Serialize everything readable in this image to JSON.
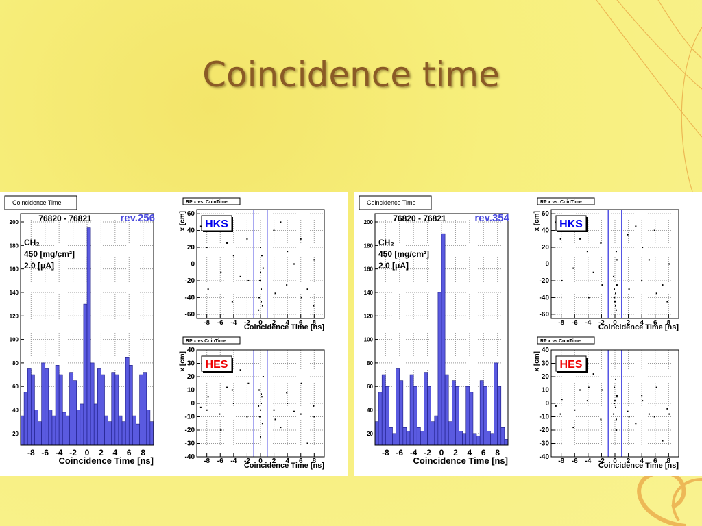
{
  "slide": {
    "title": "Coincidence time"
  },
  "chart_data": [
    {
      "type": "histogram",
      "title": "Coincidence Time",
      "run": "76820 - 76821",
      "revision": "rev.256",
      "annotations": [
        "CH₂",
        "450 [mg/cm²]",
        "2.0 [μA]"
      ],
      "xlabel": "Coincidence Time [ns]",
      "color": "#5a5ae0",
      "bins": [
        -9.5,
        -9,
        -8.5,
        -8,
        -7.5,
        -7,
        -6.5,
        -6,
        -5.5,
        -5,
        -4.5,
        -4,
        -3.5,
        -3,
        -2.5,
        -2,
        -1.5,
        -1,
        -0.5,
        0,
        0.5,
        1,
        1.5,
        2,
        2.5,
        3,
        3.5,
        4,
        4.5,
        5,
        5.5,
        6,
        6.5,
        7,
        7.5,
        8,
        8.5,
        9,
        9.5
      ],
      "counts": [
        35,
        55,
        75,
        70,
        40,
        30,
        80,
        75,
        40,
        35,
        78,
        70,
        38,
        35,
        72,
        65,
        40,
        45,
        130,
        195,
        80,
        45,
        75,
        70,
        35,
        30,
        72,
        70,
        35,
        30,
        85,
        78,
        35,
        28,
        70,
        72,
        40,
        30
      ],
      "xlim": [
        -9.5,
        9.5
      ],
      "ylim": [
        10,
        207
      ],
      "xticks": [
        -8,
        -6,
        -4,
        -2,
        0,
        2,
        4,
        6,
        8
      ],
      "yticks": [
        20,
        40,
        60,
        80,
        100,
        120,
        140,
        160,
        180,
        200
      ],
      "grid": true
    },
    {
      "type": "scatter",
      "title": "RP x vs. CoinTime",
      "label": "HKS",
      "label_color": "#0000ee",
      "xlabel": "Coincidence Time [ns]",
      "ylabel": "x [cm]",
      "color": "#000000",
      "x": [
        -8,
        -7.8,
        -6.1,
        -5.9,
        -4,
        -4.2,
        -2,
        -1.8,
        0,
        0.1,
        -0.2,
        0.3,
        0.2,
        -0.1,
        0.4,
        0,
        2,
        2.2,
        4,
        3.9,
        6,
        6.1,
        8,
        7.9,
        -8.9,
        -3,
        3,
        5,
        -5,
        7,
        -0.3,
        0.1
      ],
      "y": [
        20,
        -30,
        40,
        -10,
        10,
        -45,
        30,
        -20,
        -10,
        -30,
        -40,
        -50,
        10,
        -20,
        -5,
        20,
        40,
        -35,
        15,
        -25,
        30,
        -40,
        5,
        -50,
        45,
        -15,
        50,
        0,
        25,
        -30,
        -55,
        -45
      ],
      "cut_lines": [
        -1,
        1
      ],
      "xlim": [
        -9.5,
        9.5
      ],
      "ylim": [
        -65,
        65
      ],
      "xticks": [
        -8,
        -6,
        -4,
        -2,
        0,
        2,
        4,
        6,
        8
      ],
      "yticks": [
        -60,
        -40,
        -20,
        0,
        20,
        40,
        60
      ],
      "grid": true
    },
    {
      "type": "scatter",
      "title": "RP x vs.CoinTime",
      "label": "HES",
      "label_color": "#ee0000",
      "xlabel": "Coincidence Time [ns]",
      "ylabel": "x [cm]",
      "color": "#000000",
      "x": [
        -8,
        -7.8,
        -6.1,
        -5.9,
        -4,
        -4.2,
        -2,
        -1.8,
        0,
        0.1,
        -0.2,
        0.3,
        0.2,
        -0.1,
        0.4,
        0,
        2,
        2.2,
        4,
        3.9,
        6,
        6.1,
        8,
        7.9,
        -8.9,
        -3,
        3,
        5,
        -5,
        7,
        -0.3,
        0.1
      ],
      "y": [
        -5,
        5,
        -8,
        -20,
        0,
        10,
        -10,
        15,
        -5,
        0,
        10,
        -15,
        5,
        -10,
        20,
        -25,
        -5,
        -12,
        0,
        8,
        -8,
        15,
        -10,
        -2,
        -3,
        25,
        -18,
        -6,
        12,
        -30,
        -2,
        7
      ],
      "cut_lines": [
        -1,
        1
      ],
      "xlim": [
        -9.5,
        9.5
      ],
      "ylim": [
        -40,
        40
      ],
      "xticks": [
        -8,
        -6,
        -4,
        -2,
        0,
        2,
        4,
        6,
        8
      ],
      "yticks": [
        -40,
        -30,
        -20,
        -10,
        0,
        10,
        20,
        30,
        40
      ],
      "grid": true
    },
    {
      "type": "histogram",
      "title": "Coincidence Time",
      "run": "76820 - 76821",
      "revision": "rev.354",
      "annotations": [
        "CH₂",
        "450 [mg/cm²]",
        "2.0 [μA]"
      ],
      "xlabel": "Coincidence Time [ns]",
      "color": "#5a5ae0",
      "bins": [
        -9.5,
        -9,
        -8.5,
        -8,
        -7.5,
        -7,
        -6.5,
        -6,
        -5.5,
        -5,
        -4.5,
        -4,
        -3.5,
        -3,
        -2.5,
        -2,
        -1.5,
        -1,
        -0.5,
        0,
        0.5,
        1,
        1.5,
        2,
        2.5,
        3,
        3.5,
        4,
        4.5,
        5,
        5.5,
        6,
        6.5,
        7,
        7.5,
        8,
        8.5,
        9,
        9.5
      ],
      "counts": [
        30,
        55,
        70,
        60,
        25,
        20,
        75,
        65,
        25,
        22,
        70,
        60,
        25,
        22,
        72,
        60,
        30,
        35,
        140,
        190,
        70,
        30,
        65,
        60,
        22,
        20,
        60,
        55,
        20,
        18,
        65,
        60,
        22,
        20,
        80,
        60,
        25,
        15
      ],
      "xlim": [
        -9.5,
        9.5
      ],
      "ylim": [
        10,
        207
      ],
      "xticks": [
        -8,
        -6,
        -4,
        -2,
        0,
        2,
        4,
        6,
        8
      ],
      "yticks": [
        20,
        40,
        60,
        80,
        100,
        120,
        140,
        160,
        180,
        200
      ],
      "grid": true
    },
    {
      "type": "scatter",
      "title": "RP x vs. CoinTime",
      "label": "HKS",
      "label_color": "#0000ee",
      "xlabel": "Coincidence Time [ns]",
      "ylabel": "x [cm]",
      "color": "#000000",
      "x": [
        -8.1,
        -7.9,
        -6,
        -6.2,
        -4.1,
        -3.9,
        -2.1,
        -1.9,
        0.1,
        0,
        -0.1,
        0.2,
        0.3,
        -0.2,
        0.1,
        0.2,
        1.9,
        2.1,
        4.1,
        4,
        5.9,
        6.2,
        8.1,
        7.8,
        -8.8,
        -3.2,
        3.1,
        5.1,
        -5.2,
        7.1,
        -0.1,
        0.3
      ],
      "y": [
        30,
        -20,
        45,
        -5,
        15,
        -40,
        25,
        -25,
        -35,
        -45,
        -30,
        -55,
        5,
        -15,
        -50,
        15,
        35,
        -30,
        20,
        -20,
        40,
        -35,
        0,
        -45,
        50,
        -10,
        45,
        5,
        30,
        -25,
        -40,
        -25
      ],
      "cut_lines": [
        -1,
        1
      ],
      "xlim": [
        -9.5,
        9.5
      ],
      "ylim": [
        -65,
        65
      ],
      "xticks": [
        -8,
        -6,
        -4,
        -2,
        0,
        2,
        4,
        6,
        8
      ],
      "yticks": [
        -60,
        -40,
        -20,
        0,
        20,
        40,
        60
      ],
      "grid": true
    },
    {
      "type": "scatter",
      "title": "RP x vs.CoinTime",
      "label": "HES",
      "label_color": "#ee0000",
      "xlabel": "Coincidence Time [ns]",
      "ylabel": "x [cm]",
      "color": "#000000",
      "x": [
        -8.1,
        -7.9,
        -6,
        -6.2,
        -4.1,
        -3.9,
        -2.1,
        -1.9,
        0.1,
        0,
        -0.1,
        0.2,
        0.3,
        -0.2,
        0.1,
        0.2,
        1.9,
        2.1,
        4.1,
        4,
        5.9,
        6.2,
        8.1,
        7.8,
        -8.8,
        -3.2,
        3.1,
        5.1,
        -5.2,
        7.1,
        -0.1,
        0.3
      ],
      "y": [
        -8,
        3,
        -5,
        -18,
        2,
        12,
        -12,
        10,
        -3,
        2,
        12,
        -12,
        6,
        -8,
        18,
        -20,
        -6,
        -10,
        2,
        6,
        -10,
        12,
        -8,
        -4,
        -2,
        22,
        -15,
        -8,
        10,
        -28,
        0,
        5
      ],
      "cut_lines": [
        -1,
        1
      ],
      "xlim": [
        -9.5,
        9.5
      ],
      "ylim": [
        -40,
        40
      ],
      "xticks": [
        -8,
        -6,
        -4,
        -2,
        0,
        2,
        4,
        6,
        8
      ],
      "yticks": [
        -40,
        -30,
        -20,
        -10,
        0,
        10,
        20,
        30,
        40
      ],
      "grid": true
    }
  ]
}
